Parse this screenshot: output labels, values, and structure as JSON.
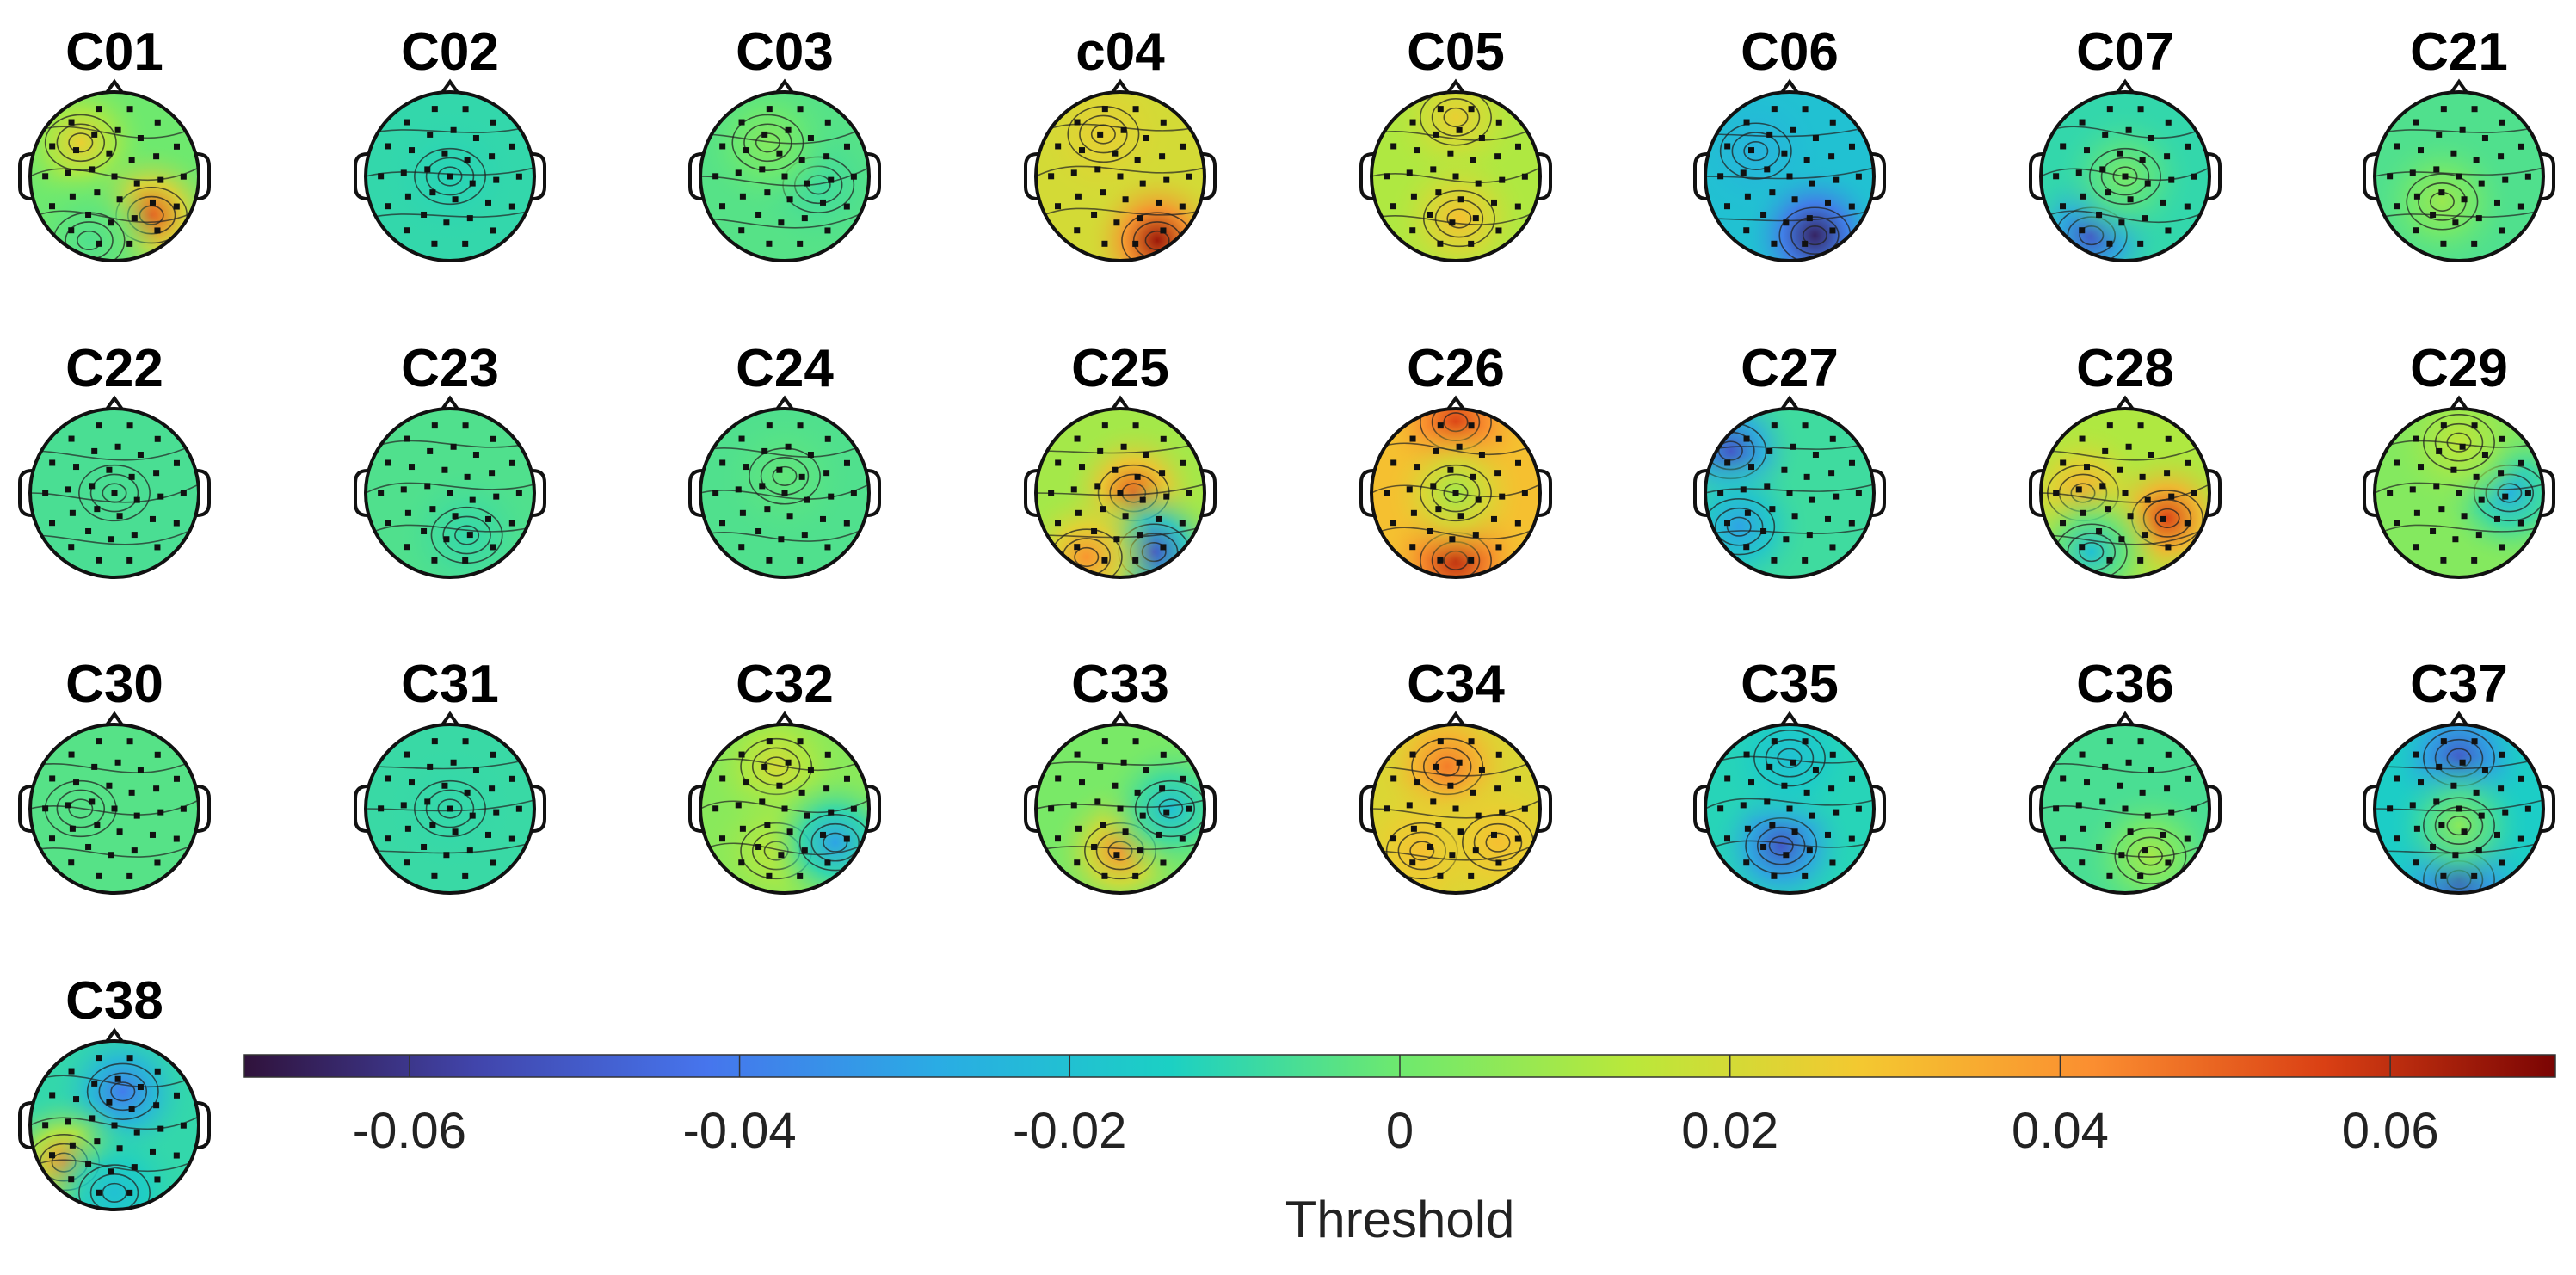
{
  "chart_data": {
    "type": "heatmap",
    "title": "",
    "description_kind": "scalp topographic maps",
    "components": [
      {
        "label": "C01",
        "hot": [
          {
            "x": 0.3,
            "y": 0.3,
            "v": 0.025
          },
          {
            "x": 0.72,
            "y": 0.73,
            "v": 0.05
          },
          {
            "x": 0.35,
            "y": 0.88,
            "v": -0.005
          }
        ],
        "base": 0.0
      },
      {
        "label": "C02",
        "hot": [
          {
            "x": 0.5,
            "y": 0.5,
            "v": -0.012
          }
        ],
        "base": -0.01
      },
      {
        "label": "C03",
        "hot": [
          {
            "x": 0.7,
            "y": 0.55,
            "v": -0.008
          },
          {
            "x": 0.4,
            "y": 0.3,
            "v": 0.004
          }
        ],
        "base": -0.004
      },
      {
        "label": "c04",
        "hot": [
          {
            "x": 0.4,
            "y": 0.25,
            "v": 0.025
          },
          {
            "x": 0.72,
            "y": 0.88,
            "v": 0.065
          }
        ],
        "base": 0.02
      },
      {
        "label": "C05",
        "hot": [
          {
            "x": 0.5,
            "y": 0.15,
            "v": 0.025
          },
          {
            "x": 0.52,
            "y": 0.75,
            "v": 0.03
          }
        ],
        "base": 0.012
      },
      {
        "label": "C06",
        "hot": [
          {
            "x": 0.3,
            "y": 0.35,
            "v": -0.025
          },
          {
            "x": 0.65,
            "y": 0.85,
            "v": -0.065
          }
        ],
        "base": -0.02
      },
      {
        "label": "C07",
        "hot": [
          {
            "x": 0.3,
            "y": 0.85,
            "v": -0.05
          },
          {
            "x": 0.5,
            "y": 0.5,
            "v": 0.002
          }
        ],
        "base": -0.01
      },
      {
        "label": "C21",
        "hot": [
          {
            "x": 0.4,
            "y": 0.65,
            "v": 0.008
          }
        ],
        "base": -0.005
      },
      {
        "label": "C22",
        "hot": [
          {
            "x": 0.5,
            "y": 0.5,
            "v": -0.006
          }
        ],
        "base": -0.006
      },
      {
        "label": "C23",
        "hot": [
          {
            "x": 0.6,
            "y": 0.75,
            "v": -0.01
          }
        ],
        "base": -0.005
      },
      {
        "label": "C24",
        "hot": [
          {
            "x": 0.5,
            "y": 0.4,
            "v": -0.002
          }
        ],
        "base": -0.005
      },
      {
        "label": "C25",
        "hot": [
          {
            "x": 0.58,
            "y": 0.5,
            "v": 0.05
          },
          {
            "x": 0.7,
            "y": 0.85,
            "v": -0.05
          },
          {
            "x": 0.3,
            "y": 0.88,
            "v": 0.04
          }
        ],
        "base": 0.01
      },
      {
        "label": "C26",
        "hot": [
          {
            "x": 0.5,
            "y": 0.08,
            "v": 0.055
          },
          {
            "x": 0.5,
            "y": 0.9,
            "v": 0.06
          },
          {
            "x": 0.5,
            "y": 0.5,
            "v": 0.01
          }
        ],
        "base": 0.03
      },
      {
        "label": "C27",
        "hot": [
          {
            "x": 0.15,
            "y": 0.25,
            "v": -0.05
          },
          {
            "x": 0.2,
            "y": 0.7,
            "v": -0.03
          }
        ],
        "base": -0.008
      },
      {
        "label": "C28",
        "hot": [
          {
            "x": 0.25,
            "y": 0.5,
            "v": 0.035
          },
          {
            "x": 0.75,
            "y": 0.65,
            "v": 0.055
          },
          {
            "x": 0.3,
            "y": 0.85,
            "v": -0.02
          }
        ],
        "base": 0.012
      },
      {
        "label": "C29",
        "hot": [
          {
            "x": 0.8,
            "y": 0.5,
            "v": -0.025
          },
          {
            "x": 0.5,
            "y": 0.2,
            "v": 0.015
          }
        ],
        "base": 0.004
      },
      {
        "label": "C30",
        "hot": [
          {
            "x": 0.3,
            "y": 0.5,
            "v": -0.004
          }
        ],
        "base": -0.004
      },
      {
        "label": "C31",
        "hot": [
          {
            "x": 0.5,
            "y": 0.5,
            "v": -0.01
          }
        ],
        "base": -0.009
      },
      {
        "label": "C32",
        "hot": [
          {
            "x": 0.45,
            "y": 0.25,
            "v": 0.02
          },
          {
            "x": 0.45,
            "y": 0.75,
            "v": 0.015
          },
          {
            "x": 0.8,
            "y": 0.7,
            "v": -0.03
          }
        ],
        "base": 0.005
      },
      {
        "label": "C33",
        "hot": [
          {
            "x": 0.5,
            "y": 0.75,
            "v": 0.04
          },
          {
            "x": 0.8,
            "y": 0.5,
            "v": -0.02
          }
        ],
        "base": 0.002
      },
      {
        "label": "C34",
        "hot": [
          {
            "x": 0.45,
            "y": 0.25,
            "v": 0.045
          },
          {
            "x": 0.3,
            "y": 0.75,
            "v": 0.03
          },
          {
            "x": 0.75,
            "y": 0.7,
            "v": 0.03
          }
        ],
        "base": 0.022
      },
      {
        "label": "C35",
        "hot": [
          {
            "x": 0.45,
            "y": 0.72,
            "v": -0.05
          },
          {
            "x": 0.5,
            "y": 0.2,
            "v": -0.02
          }
        ],
        "base": -0.012
      },
      {
        "label": "C36",
        "hot": [
          {
            "x": 0.65,
            "y": 0.78,
            "v": 0.01
          }
        ],
        "base": -0.006
      },
      {
        "label": "C37",
        "hot": [
          {
            "x": 0.5,
            "y": 0.2,
            "v": -0.05
          },
          {
            "x": 0.5,
            "y": 0.92,
            "v": -0.055
          },
          {
            "x": 0.5,
            "y": 0.6,
            "v": 0.005
          }
        ],
        "base": -0.015
      },
      {
        "label": "C38",
        "hot": [
          {
            "x": 0.55,
            "y": 0.3,
            "v": -0.04
          },
          {
            "x": 0.2,
            "y": 0.72,
            "v": 0.04
          },
          {
            "x": 0.5,
            "y": 0.9,
            "v": -0.02
          }
        ],
        "base": -0.01
      }
    ],
    "colorbar": {
      "range": [
        -0.07,
        0.07
      ],
      "ticks": [
        -0.06,
        -0.04,
        -0.02,
        0,
        0.02,
        0.04,
        0.06
      ],
      "tick_labels": [
        "-0.06",
        "-0.04",
        "-0.02",
        "0",
        "0.02",
        "0.04",
        "0.06"
      ],
      "label": "Threshold",
      "colormap": "turbo"
    }
  }
}
